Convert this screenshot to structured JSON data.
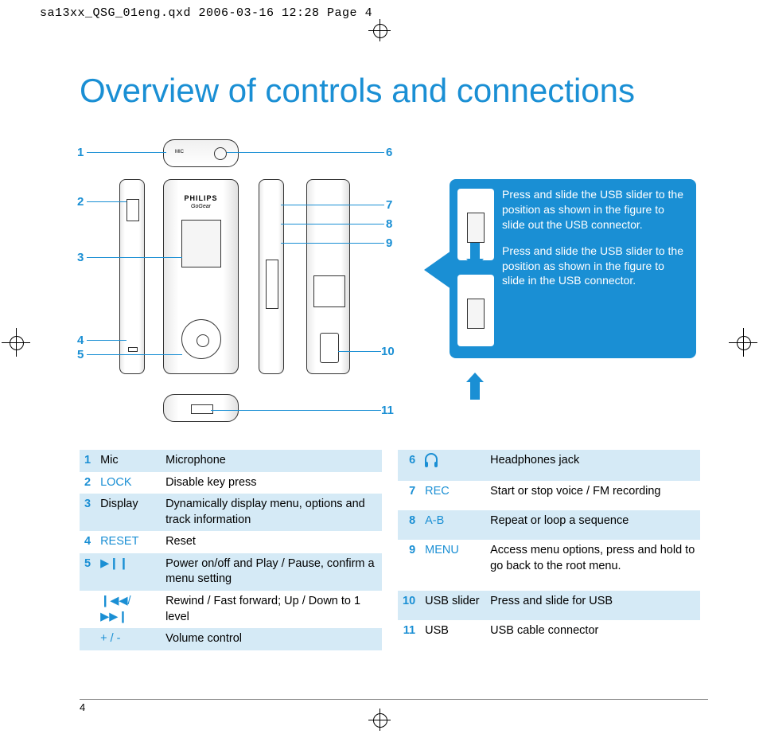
{
  "print_header": "sa13xx_QSG_01eng.qxd  2006-03-16  12:28  Page 4",
  "title": "Overview of controls and connections",
  "brand": "PHILIPS",
  "subbrand": "GoGear",
  "info": {
    "text1": "Press and slide the USB slider to the position as shown in the figure to slide out the USB connector.",
    "text2": "Press and slide the USB slider to the position as shown in the figure to slide in the USB connector."
  },
  "callouts": {
    "n1": "1",
    "n2": "2",
    "n3": "3",
    "n4": "4",
    "n5": "5",
    "n6": "6",
    "n7": "7",
    "n8": "8",
    "n9": "9",
    "n10": "10",
    "n11": "11"
  },
  "left_table": [
    {
      "num": "1",
      "label": "Mic",
      "label_color": "plain",
      "desc": "Microphone"
    },
    {
      "num": "2",
      "label": "LOCK",
      "label_color": "blue",
      "desc": "Disable key press"
    },
    {
      "num": "3",
      "label": "Display",
      "label_color": "plain",
      "desc": "Dynamically display menu, options and track information"
    },
    {
      "num": "4",
      "label": "RESET",
      "label_color": "blue",
      "desc": "Reset"
    },
    {
      "num": "5",
      "label": "▶❙❙",
      "label_color": "blue",
      "desc": "Power on/off and Play / Pause, confirm a menu setting"
    },
    {
      "num": "",
      "label": "❙◀◀/▶▶❙",
      "label_color": "blue",
      "desc": "Rewind / Fast forward; Up / Down to 1 level"
    },
    {
      "num": "",
      "label": "+ / -",
      "label_color": "blue",
      "desc": "Volume control"
    }
  ],
  "right_table": [
    {
      "num": "6",
      "label": "HEADPHONE_ICON",
      "label_color": "blue",
      "desc": "Headphones jack"
    },
    {
      "num": "7",
      "label": "REC",
      "label_color": "blue",
      "desc": "Start or stop voice / FM recording"
    },
    {
      "num": "8",
      "label": "A-B",
      "label_color": "blue",
      "desc": "Repeat or loop a sequence"
    },
    {
      "num": "9",
      "label": "MENU",
      "label_color": "blue",
      "desc": "Access menu options, press and hold to go back to the root menu."
    },
    {
      "num": "10",
      "label": "USB slider",
      "label_color": "plain",
      "desc": "Press and slide for USB"
    },
    {
      "num": "11",
      "label": "USB",
      "label_color": "plain",
      "desc": "USB cable connector"
    }
  ],
  "page_number": "4",
  "colors": {
    "accent": "#1a8fd4",
    "zebra": "#d5eaf6",
    "text": "#000000",
    "bg": "#ffffff"
  }
}
